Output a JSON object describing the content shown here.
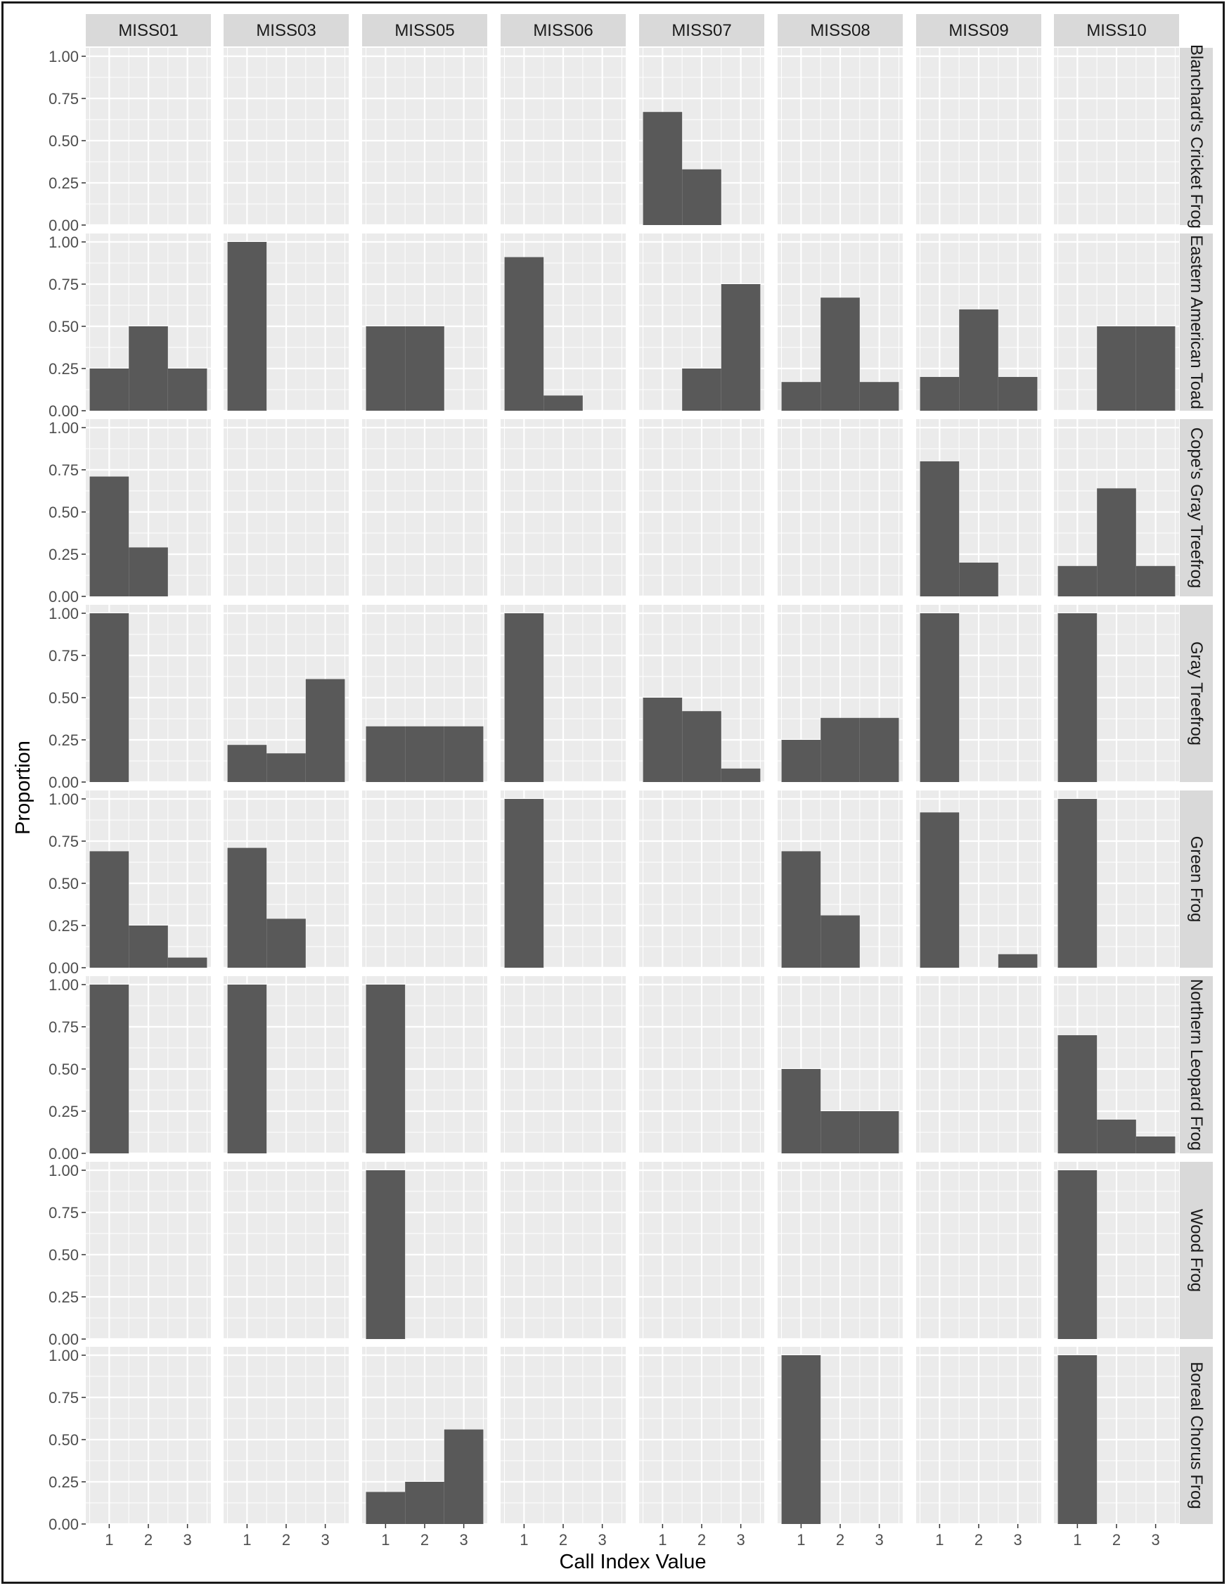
{
  "chart_data": {
    "type": "bar",
    "facet_columns": [
      "MISS01",
      "MISS03",
      "MISS05",
      "MISS06",
      "MISS07",
      "MISS08",
      "MISS09",
      "MISS10"
    ],
    "facet_rows": [
      "Blanchard's Cricket Frog",
      "Eastern American Toad",
      "Cope's Gray Treefrog",
      "Gray Treefrog",
      "Green Frog",
      "Northern Leopard Frog",
      "Wood Frog",
      "Boreal Chorus Frog"
    ],
    "categories": [
      1,
      2,
      3
    ],
    "x_tick_labels": [
      "1",
      "2",
      "3"
    ],
    "y_ticks": [
      "0.00",
      "0.25",
      "0.50",
      "0.75",
      "1.00"
    ],
    "xlabel": "Call Index Value",
    "ylabel": "Proportion",
    "ylim": [
      0,
      1.05
    ],
    "grid": true,
    "colors": {
      "bar": "#595959",
      "panel": "#ebebeb",
      "strip": "#d9d9d9",
      "grid": "#ffffff"
    },
    "panels": {
      "Blanchard's Cricket Frog": {
        "MISS07": [
          0.67,
          0.33,
          0
        ]
      },
      "Eastern American Toad": {
        "MISS01": [
          0.25,
          0.5,
          0.25
        ],
        "MISS03": [
          1.0,
          0,
          0
        ],
        "MISS05": [
          0.5,
          0.5,
          0
        ],
        "MISS06": [
          0.91,
          0.09,
          0
        ],
        "MISS07": [
          0,
          0.25,
          0.75
        ],
        "MISS08": [
          0.17,
          0.67,
          0.17
        ],
        "MISS09": [
          0.2,
          0.6,
          0.2
        ],
        "MISS10": [
          0,
          0.5,
          0.5
        ]
      },
      "Cope's Gray Treefrog": {
        "MISS01": [
          0.71,
          0.29,
          0
        ],
        "MISS09": [
          0.8,
          0.2,
          0
        ],
        "MISS10": [
          0.18,
          0.64,
          0.18
        ]
      },
      "Gray Treefrog": {
        "MISS01": [
          1.0,
          0,
          0
        ],
        "MISS03": [
          0.22,
          0.17,
          0.61
        ],
        "MISS05": [
          0.33,
          0.33,
          0.33
        ],
        "MISS06": [
          1.0,
          0,
          0
        ],
        "MISS07": [
          0.5,
          0.42,
          0.08
        ],
        "MISS08": [
          0.25,
          0.38,
          0.38
        ],
        "MISS09": [
          1.0,
          0,
          0
        ],
        "MISS10": [
          1.0,
          0,
          0
        ]
      },
      "Green Frog": {
        "MISS01": [
          0.69,
          0.25,
          0.06
        ],
        "MISS03": [
          0.71,
          0.29,
          0
        ],
        "MISS06": [
          1.0,
          0,
          0
        ],
        "MISS08": [
          0.69,
          0.31,
          0
        ],
        "MISS09": [
          0.92,
          0,
          0.08
        ],
        "MISS10": [
          1.0,
          0,
          0
        ]
      },
      "Northern Leopard Frog": {
        "MISS01": [
          1.0,
          0,
          0
        ],
        "MISS03": [
          1.0,
          0,
          0
        ],
        "MISS05": [
          1.0,
          0,
          0
        ],
        "MISS08": [
          0.5,
          0.25,
          0.25
        ],
        "MISS10": [
          0.7,
          0.2,
          0.1
        ]
      },
      "Wood Frog": {
        "MISS05": [
          1.0,
          0,
          0
        ],
        "MISS10": [
          1.0,
          0,
          0
        ]
      },
      "Boreal Chorus Frog": {
        "MISS05": [
          0.19,
          0.25,
          0.56
        ],
        "MISS08": [
          1.0,
          0,
          0
        ],
        "MISS10": [
          1.0,
          0,
          0
        ]
      }
    }
  }
}
